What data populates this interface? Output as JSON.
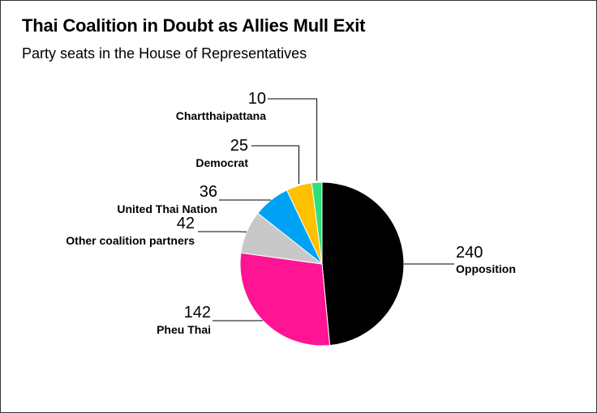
{
  "header": {
    "title": "Thai Coalition in Doubt as Allies Mull Exit",
    "subtitle": "Party seats in the House of Representatives"
  },
  "chart_data": {
    "type": "pie",
    "title": "Thai Coalition in Doubt as Allies Mull Exit",
    "subtitle": "Party seats in the House of Representatives",
    "unit": "seats",
    "start": "12 o'clock, clockwise",
    "slices": [
      {
        "label": "Opposition",
        "value": 240,
        "display": "240",
        "color": "#000000"
      },
      {
        "label": "Pheu Thai",
        "value": 142,
        "display": "142",
        "color": "#ff1493"
      },
      {
        "label": "Other coalition partners",
        "value": 42,
        "display": "42",
        "color": "#c8c8c8"
      },
      {
        "label": "United Thai Nation",
        "value": 36,
        "display": "36",
        "color": "#00a2f5"
      },
      {
        "label": "Democrat",
        "value": 25,
        "display": "25",
        "color": "#ffc000"
      },
      {
        "label": "Chartthaipattana",
        "value": 10,
        "display": "10",
        "color": "#2ee07a"
      }
    ]
  }
}
